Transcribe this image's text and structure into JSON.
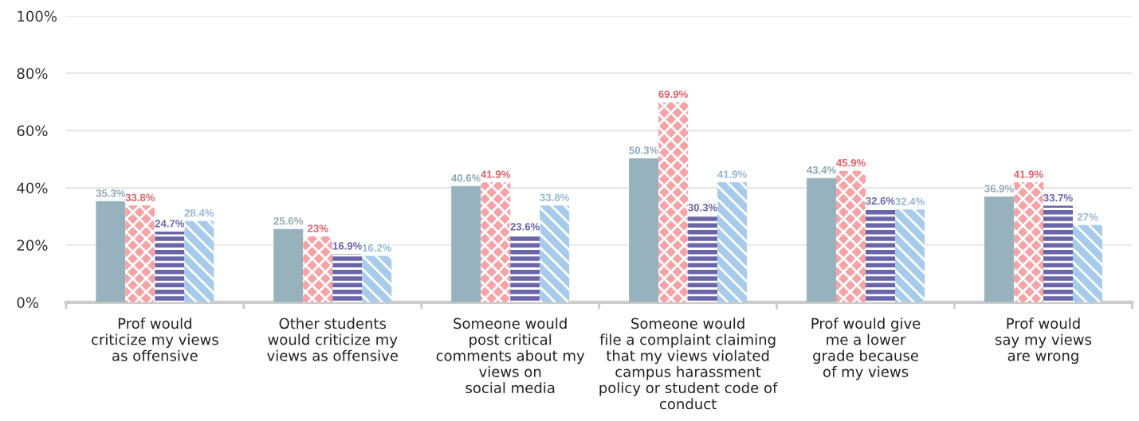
{
  "chart_data": {
    "type": "bar",
    "categories": [
      "Prof would\ncriticize my views\nas offensive",
      "Other students\nwould criticize my\nviews as offensive",
      "Someone would\npost critical\ncomments about my\nviews on\nsocial media",
      "Someone would\nfile a complaint claiming\nthat my views violated\ncampus harassment\npolicy or student code of\nconduct",
      "Prof would give\nme a lower\ngrade because\nof my views",
      "Prof would\nsay my views\nare wrong"
    ],
    "series": [
      {
        "color": "#97b2bc",
        "values": [
          35.3,
          25.6,
          40.6,
          50.3,
          43.4,
          36.9
        ],
        "value_labels": [
          "35.3%",
          "25.6%",
          "40.6%",
          "50.3%",
          "43.4%",
          "36.9%"
        ]
      },
      {
        "color": "#f5a3a6",
        "values": [
          33.8,
          23,
          41.9,
          69.9,
          45.9,
          41.9
        ],
        "value_labels": [
          "33.8%",
          "23%",
          "41.9%",
          "69.9%",
          "45.9%",
          "41.9%"
        ]
      },
      {
        "color": "#6a64a8",
        "values": [
          24.7,
          16.9,
          23.6,
          30.3,
          32.6,
          33.7
        ],
        "value_labels": [
          "24.7%",
          "16.9%",
          "23.6%",
          "30.3%",
          "32.6%",
          "33.7%"
        ]
      },
      {
        "color": "#a7cbea",
        "values": [
          28.4,
          16.2,
          33.8,
          41.9,
          32.4,
          27
        ],
        "value_labels": [
          "28.4%",
          "16.2%",
          "33.8%",
          "41.9%",
          "32.4%",
          "27%"
        ]
      }
    ],
    "ylim": [
      0,
      100
    ],
    "yticks": [
      {
        "value": 0,
        "label": "0%"
      },
      {
        "value": 20,
        "label": "20%"
      },
      {
        "value": 40,
        "label": "40%"
      },
      {
        "value": 60,
        "label": "60%"
      },
      {
        "value": 80,
        "label": "80%"
      },
      {
        "value": 100,
        "label": "100%"
      }
    ],
    "grid": "y"
  }
}
